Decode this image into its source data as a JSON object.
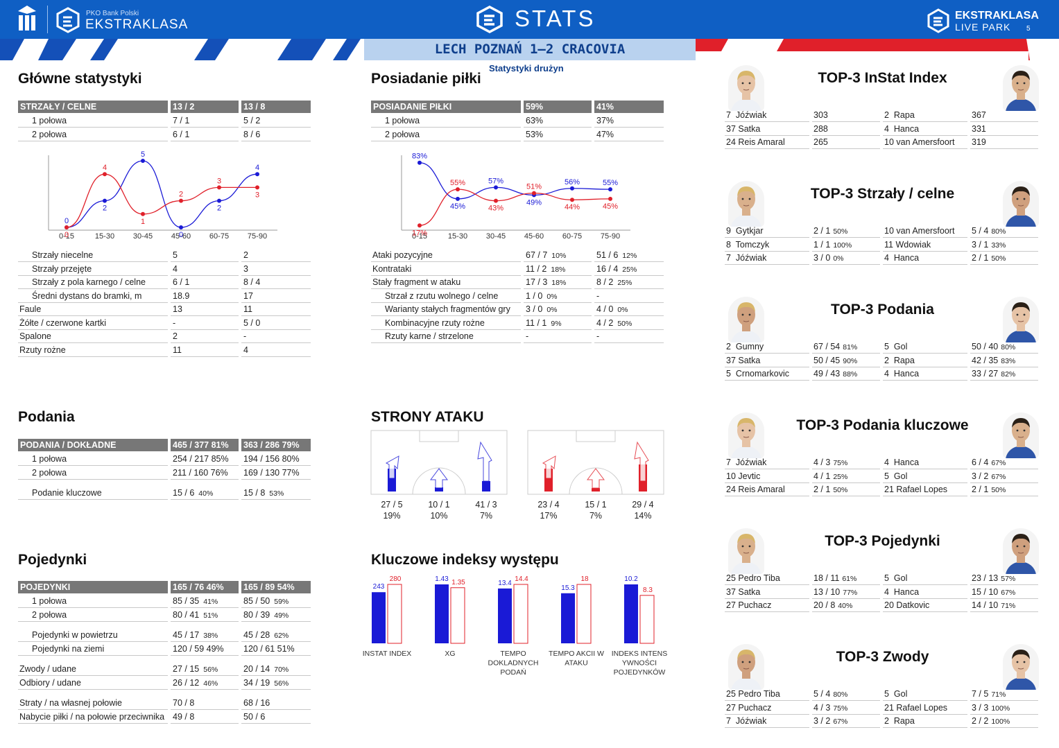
{
  "header": {
    "sponsor": "PKO Bank Polski",
    "league": "EKSTRAKLASA",
    "center": "STATS",
    "right_top": "EKSTRAKLASA",
    "right_bottom": "LIVE PARK",
    "page_no": "5",
    "match": "LECH POZNAŃ 1–2 CRACOVIA",
    "subtitle": "Statystyki drużyn"
  },
  "colors": {
    "home": "#1a1ad6",
    "away": "#e0202a",
    "header_bg": "#0f5fc4"
  },
  "main_stats": {
    "title": "Główne statystyki",
    "header": [
      "STRZAŁY / CELNE",
      "13 / 2",
      "13 / 8"
    ],
    "halves": [
      [
        "1 połowa",
        "7 / 1",
        "5 / 2"
      ],
      [
        "2 połowa",
        "6 / 1",
        "8 / 6"
      ]
    ],
    "rows": [
      [
        "Strzały niecelne",
        "5",
        "2",
        1
      ],
      [
        "Strzały przejęte",
        "4",
        "3",
        1
      ],
      [
        "Strzały z pola karnego / celne",
        "6 / 1",
        "8 / 4",
        1
      ],
      [
        "Średni dystans do bramki, m",
        "18.9",
        "17",
        1
      ],
      [
        "Faule",
        "13",
        "11",
        0
      ],
      [
        "Żółte / czerwone kartki",
        "-",
        "5 / 0",
        0
      ],
      [
        "Spalone",
        "2",
        "-",
        0
      ],
      [
        "Rzuty rożne",
        "11",
        "4",
        0
      ]
    ]
  },
  "shots_chart": {
    "categories": [
      "0-15",
      "15-30",
      "30-45",
      "45-60",
      "60-75",
      "75-90"
    ],
    "home": [
      0,
      2,
      5,
      0,
      2,
      4
    ],
    "away": [
      0,
      4,
      1,
      2,
      3,
      3
    ],
    "ylim": [
      0,
      5
    ]
  },
  "possession": {
    "title": "Posiadanie piłki",
    "header": [
      "POSIADANIE PIŁKI",
      "59%",
      "41%"
    ],
    "halves": [
      [
        "1 połowa",
        "63%",
        "37%"
      ],
      [
        "2 połowa",
        "53%",
        "47%"
      ]
    ],
    "rows": [
      [
        "Ataki pozycyjne",
        "67 / 7",
        "10%",
        "51 / 6",
        "12%",
        0
      ],
      [
        "Kontrataki",
        "11 / 2",
        "18%",
        "16 / 4",
        "25%",
        0
      ],
      [
        "Stały fragment w ataku",
        "17 / 3",
        "18%",
        "8 / 2",
        "25%",
        0
      ],
      [
        "Strzał z rzutu wolnego / celne",
        "1 / 0",
        "0%",
        "-",
        "",
        1
      ],
      [
        "Warianty stałych fragmentów gry",
        "3 / 0",
        "0%",
        "4 / 0",
        "0%",
        1
      ],
      [
        "Kombinacyjne rzuty rożne",
        "11 / 1",
        "9%",
        "4 / 2",
        "50%",
        1
      ],
      [
        "Rzuty karne /  strzelone",
        "-",
        "",
        "-",
        "",
        1
      ]
    ]
  },
  "possession_chart": {
    "categories": [
      "0-15",
      "15-30",
      "30-45",
      "45-60",
      "60-75",
      "75-90"
    ],
    "home": [
      83,
      45,
      57,
      49,
      56,
      55
    ],
    "away": [
      17,
      55,
      43,
      51,
      44,
      45
    ],
    "home_labels": [
      "83%",
      "45%",
      "57%",
      "49%",
      "56%",
      "55%"
    ],
    "away_labels": [
      "17%",
      "55%",
      "43%",
      "51%",
      "44%",
      "45%"
    ]
  },
  "passes": {
    "title": "Podania",
    "header": [
      "PODANIA / DOKŁADNE",
      "465 / 377 81%",
      "363 / 286 79%"
    ],
    "rows": [
      [
        "1 połowa",
        "254 / 217 85%",
        "",
        "194 / 156 80%",
        ""
      ],
      [
        "2 połowa",
        "211 / 160 76%",
        "",
        "169 / 130 77%",
        ""
      ],
      [
        "Podanie kluczowe",
        "15 / 6",
        "40%",
        "15 / 8",
        "53%"
      ]
    ]
  },
  "duels": {
    "title": "Pojedynki",
    "header": [
      "POJEDYNKI",
      "165 / 76 46%",
      "165 / 89 54%"
    ],
    "rows": [
      [
        "1 połowa",
        "85 / 35",
        "41%",
        "85 / 50",
        "59%",
        1
      ],
      [
        "2 połowa",
        "80 / 41",
        "51%",
        "80 / 39",
        "49%",
        1
      ],
      [
        "Pojedynki w powietrzu",
        "45 / 17",
        "38%",
        "45 / 28",
        "62%",
        1
      ],
      [
        "Pojedynki na ziemi",
        "120 / 59 49%",
        "",
        "120 / 61 51%",
        "",
        1
      ],
      [
        "Zwody / udane",
        "27 / 15",
        "56%",
        "20 / 14",
        "70%",
        0
      ],
      [
        "Odbiory / udane",
        "26 / 12",
        "46%",
        "34 / 19",
        "56%",
        0
      ],
      [
        "Straty / na własnej połowie",
        "70 / 8",
        "",
        "68 / 16",
        "",
        0
      ],
      [
        "Nabycie piłki / na połowie przeciwnika",
        "49 / 8",
        "",
        "50 / 6",
        "",
        0
      ]
    ]
  },
  "attack": {
    "title": "STRONY ATAKU",
    "home": [
      {
        "v": "27 / 5",
        "p": "19%",
        "f": 0.55
      },
      {
        "v": "10 / 1",
        "p": "10%",
        "f": 0.1
      },
      {
        "v": "41 / 3",
        "p": "7%",
        "f": 0.25
      }
    ],
    "away": [
      {
        "v": "23 / 4",
        "p": "17%",
        "f": 0.55
      },
      {
        "v": "15 / 1",
        "p": "7%",
        "f": 0.08
      },
      {
        "v": "29 / 4",
        "p": "14%",
        "f": 0.65
      }
    ]
  },
  "key_index": {
    "title": "Kluczowe indeksy występu",
    "groups": [
      {
        "label": "INSTAT INDEX",
        "home": 243,
        "away": 280,
        "hl": "243",
        "al": "280"
      },
      {
        "label": "XG",
        "home": 1.43,
        "away": 1.35,
        "hl": "1.43",
        "al": "1.35"
      },
      {
        "label": "TEMPO DOKLADNYCH PODAŃ",
        "home": 13.4,
        "away": 14.4,
        "hl": "13.4",
        "al": "14.4"
      },
      {
        "label": "TEMPO AKCII W ATAKU",
        "home": 15.3,
        "away": 18,
        "hl": "15.3",
        "al": "18"
      },
      {
        "label": "INDEKS INTENS YWNOŚCI POJEDYNKÓW",
        "home": 10.2,
        "away": 8.3,
        "hl": "10.2",
        "al": "8.3"
      }
    ]
  },
  "tops": [
    {
      "title": "TOP-3 InStat Index",
      "rows": [
        [
          "7  Jóźwiak",
          "303",
          "",
          "2  Rapa",
          "367",
          ""
        ],
        [
          "37 Satka",
          "288",
          "",
          "4  Hanca",
          "331",
          ""
        ],
        [
          "24 Reis Amaral",
          "265",
          "",
          "10 van Amersfoort",
          "319",
          ""
        ]
      ]
    },
    {
      "title": "TOP-3 Strzały / celne",
      "rows": [
        [
          "9  Gytkjar",
          "2 / 1",
          "50%",
          "10 van Amersfoort",
          "5 / 4",
          "80%"
        ],
        [
          "8  Tomczyk",
          "1 / 1",
          "100%",
          "11 Wdowiak",
          "3 / 1",
          "33%"
        ],
        [
          "7  Jóźwiak",
          "3 / 0",
          "0%",
          "4  Hanca",
          "2 / 1",
          "50%"
        ]
      ]
    },
    {
      "title": "TOP-3 Podania",
      "rows": [
        [
          "2  Gumny",
          "67 / 54",
          "81%",
          "5  Gol",
          "50 / 40",
          "80%"
        ],
        [
          "37 Satka",
          "50 / 45",
          "90%",
          "2  Rapa",
          "42 / 35",
          "83%"
        ],
        [
          "5  Crnomarkovic",
          "49 / 43",
          "88%",
          "4  Hanca",
          "33 / 27",
          "82%"
        ]
      ]
    },
    {
      "title": "TOP-3 Podania kluczowe",
      "rows": [
        [
          "7  Jóźwiak",
          "4 / 3",
          "75%",
          "4  Hanca",
          "6 / 4",
          "67%"
        ],
        [
          "10 Jevtic",
          "4 / 1",
          "25%",
          "5  Gol",
          "3 / 2",
          "67%"
        ],
        [
          "24 Reis Amaral",
          "2 / 1",
          "50%",
          "21 Rafael Lopes",
          "2 / 1",
          "50%"
        ]
      ]
    },
    {
      "title": "TOP-3 Pojedynki",
      "rows": [
        [
          "25 Pedro Tiba",
          "18 / 11",
          "61%",
          "5  Gol",
          "23 / 13",
          "57%"
        ],
        [
          "37 Satka",
          "13 / 10",
          "77%",
          "4  Hanca",
          "15 / 10",
          "67%"
        ],
        [
          "27 Puchacz",
          "20 / 8",
          "40%",
          "20 Datkovic",
          "14 / 10",
          "71%"
        ]
      ]
    },
    {
      "title": "TOP-3 Zwody",
      "rows": [
        [
          "25 Pedro Tiba",
          "5 / 4",
          "80%",
          "5  Gol",
          "7 / 5",
          "71%"
        ],
        [
          "27 Puchacz",
          "4 / 3",
          "75%",
          "21 Rafael Lopes",
          "3 / 3",
          "100%"
        ],
        [
          "7  Jóźwiak",
          "3 / 2",
          "67%",
          "2  Rapa",
          "2 / 2",
          "100%"
        ]
      ]
    }
  ]
}
